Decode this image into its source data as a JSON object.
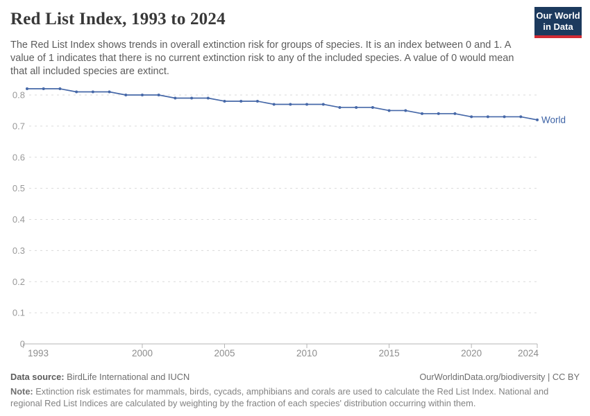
{
  "header": {
    "title": "Red List Index, 1993 to 2024",
    "logo": {
      "line1": "Our World",
      "line2": "in Data"
    }
  },
  "subtitle": "The Red List Index shows trends in overall extinction risk for groups of species. It is an index between 0 and 1. A value of 1 indicates that there is no current extinction risk to any of the included species. A value of 0 would mean that all included species are extinct.",
  "chart_data": {
    "type": "line",
    "title": "Red List Index, 1993 to 2024",
    "x": [
      1993,
      1994,
      1995,
      1996,
      1997,
      1998,
      1999,
      2000,
      2001,
      2002,
      2003,
      2004,
      2005,
      2006,
      2007,
      2008,
      2009,
      2010,
      2011,
      2012,
      2013,
      2014,
      2015,
      2016,
      2017,
      2018,
      2019,
      2020,
      2021,
      2022,
      2023,
      2024
    ],
    "series": [
      {
        "name": "World",
        "values": [
          0.82,
          0.82,
          0.82,
          0.81,
          0.81,
          0.81,
          0.8,
          0.8,
          0.8,
          0.79,
          0.79,
          0.79,
          0.78,
          0.78,
          0.78,
          0.77,
          0.77,
          0.77,
          0.77,
          0.76,
          0.76,
          0.76,
          0.75,
          0.75,
          0.74,
          0.74,
          0.74,
          0.73,
          0.73,
          0.73,
          0.73,
          0.72
        ]
      }
    ],
    "xlabel": "",
    "ylabel": "",
    "ylim": [
      0,
      0.85
    ],
    "yticks": [
      0,
      0.1,
      0.2,
      0.3,
      0.4,
      0.5,
      0.6,
      0.7,
      0.8
    ],
    "ytick_labels": [
      "0",
      "0.1",
      "0.2",
      "0.3",
      "0.4",
      "0.5",
      "0.6",
      "0.7",
      "0.8"
    ],
    "xticks": [
      1993,
      2000,
      2005,
      2010,
      2015,
      2020,
      2024
    ],
    "grid": "horizontal-dashed",
    "legend": "line-end-label"
  },
  "footer": {
    "datasource_label": "Data source:",
    "datasource_text": " BirdLife International and IUCN",
    "link": "OurWorldinData.org/biodiversity | CC BY",
    "note_label": "Note:",
    "note_text": " Extinction risk estimates for mammals, birds, cycads, amphibians and corals are used to calculate the Red List Index. National and regional Red List Indices are calculated by weighting by the fraction of each species' distribution occurring within them."
  },
  "colors": {
    "line": "#4668a8",
    "series_label": "#3c62a5",
    "grid": "#dadada",
    "axis": "#b5b5b5",
    "ytick_text": "#999999",
    "xtick_text": "#8d8d8d",
    "logo_bg": "#1c3a5e",
    "logo_red": "#d12b34",
    "title_text": "#383838"
  }
}
